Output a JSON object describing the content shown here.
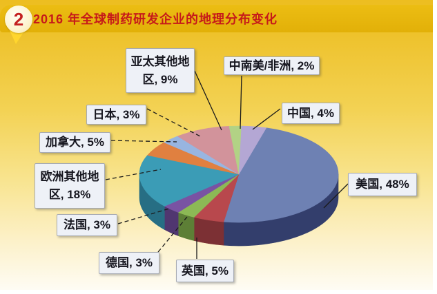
{
  "page": {
    "badge": "2",
    "title": "2016 年全球制药研发企业的地理分布变化",
    "colors": {
      "header_bg": "#e2b008",
      "title_text": "#c61a1a",
      "badge_bg": "#fdf4cf",
      "badge_text": "#c42020",
      "callout_bg": "#eef1f7",
      "callout_border": "#a7abb3",
      "callout_text": "#16161f",
      "background_top": "#edbe20",
      "background_bottom": "#fefcf4"
    }
  },
  "chart_data": {
    "type": "pie",
    "style": "3d",
    "title": "2016 年全球制药研发企业的地理分布变化",
    "unit": "percent",
    "legend_position": "none",
    "rotation_deg": 16,
    "labels": [
      "美国",
      "英国",
      "德国",
      "法国",
      "欧洲其他地区",
      "加拿大",
      "日本",
      "亚太其他地区",
      "中南美/非洲",
      "中国"
    ],
    "values": [
      48,
      5,
      3,
      3,
      18,
      5,
      3,
      9,
      2,
      4
    ],
    "colors_top": [
      "#6e81b3",
      "#b8484d",
      "#8cb955",
      "#7953a3",
      "#3b9cb6",
      "#e08040",
      "#98b5e0",
      "#d2939b",
      "#b2d285",
      "#b4a7d4"
    ],
    "colors_side": [
      "#333e6c",
      "#7c3034",
      "#5d7f36",
      "#503670",
      "#276e84",
      "#9e5524",
      "#6a82a8",
      "#97626a",
      "#7fa055",
      "#80739f"
    ],
    "callouts": [
      {
        "lines": [
          "美国, 48%"
        ]
      },
      {
        "lines": [
          "英国, 5%"
        ]
      },
      {
        "lines": [
          "德国, 3%"
        ]
      },
      {
        "lines": [
          "法国, 3%"
        ]
      },
      {
        "lines": [
          "欧洲其他地",
          "区, 18%"
        ]
      },
      {
        "lines": [
          "加拿大, 5%"
        ]
      },
      {
        "lines": [
          "日本, 3%"
        ]
      },
      {
        "lines": [
          "亚太其他地",
          "区, 9%"
        ]
      },
      {
        "lines": [
          "中南美/非洲, 2%"
        ]
      },
      {
        "lines": [
          "中国, 4%"
        ]
      }
    ]
  }
}
